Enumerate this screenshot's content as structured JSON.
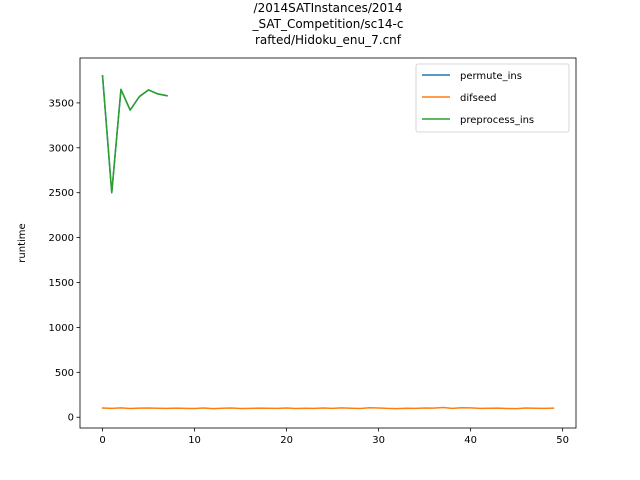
{
  "chart_data": {
    "type": "line",
    "title_lines": [
      "/2014SATInstances/2014",
      "_SAT_Competition/sc14-c",
      "rafted/Hidoku_enu_7.cnf"
    ],
    "xlabel": "",
    "ylabel": "runtime",
    "xlim": [
      -2.45,
      51.45
    ],
    "ylim": [
      -120,
      4000
    ],
    "xticks": [
      0,
      10,
      20,
      30,
      40,
      50
    ],
    "yticks": [
      0,
      500,
      1000,
      1500,
      2000,
      2500,
      3000,
      3500
    ],
    "legend_position": "upper-right",
    "series": [
      {
        "name": "permute_ins",
        "color": "#1f77b4",
        "x": [
          0,
          1,
          2,
          3,
          4,
          5,
          6,
          7
        ],
        "y": [
          3800,
          2500,
          3650,
          3420,
          3570,
          3645,
          3600,
          3580
        ]
      },
      {
        "name": "difseed",
        "color": "#ff7f0e",
        "x": [
          0,
          1,
          2,
          3,
          4,
          5,
          6,
          7,
          8,
          9,
          10,
          11,
          12,
          13,
          14,
          15,
          16,
          17,
          18,
          19,
          20,
          21,
          22,
          23,
          24,
          25,
          26,
          27,
          28,
          29,
          30,
          31,
          32,
          33,
          34,
          35,
          36,
          37,
          38,
          39,
          40,
          41,
          42,
          43,
          44,
          45,
          46,
          47,
          48,
          49
        ],
        "y": [
          102,
          98,
          104,
          97,
          101,
          103,
          100,
          99,
          101,
          98,
          97,
          103,
          96,
          100,
          102,
          97,
          99,
          101,
          100,
          98,
          103,
          97,
          100,
          99,
          102,
          98,
          104,
          100,
          97,
          106,
          103,
          98,
          96,
          100,
          99,
          102,
          101,
          108,
          99,
          105,
          104,
          98,
          100,
          101,
          97,
          96,
          102,
          100,
          98,
          101
        ]
      },
      {
        "name": "preprocess_ins",
        "color": "#2ca02c",
        "x": [
          0,
          1,
          2,
          3,
          4,
          5,
          6,
          7
        ],
        "y": [
          3800,
          2500,
          3650,
          3420,
          3570,
          3645,
          3600,
          3580
        ]
      }
    ]
  }
}
